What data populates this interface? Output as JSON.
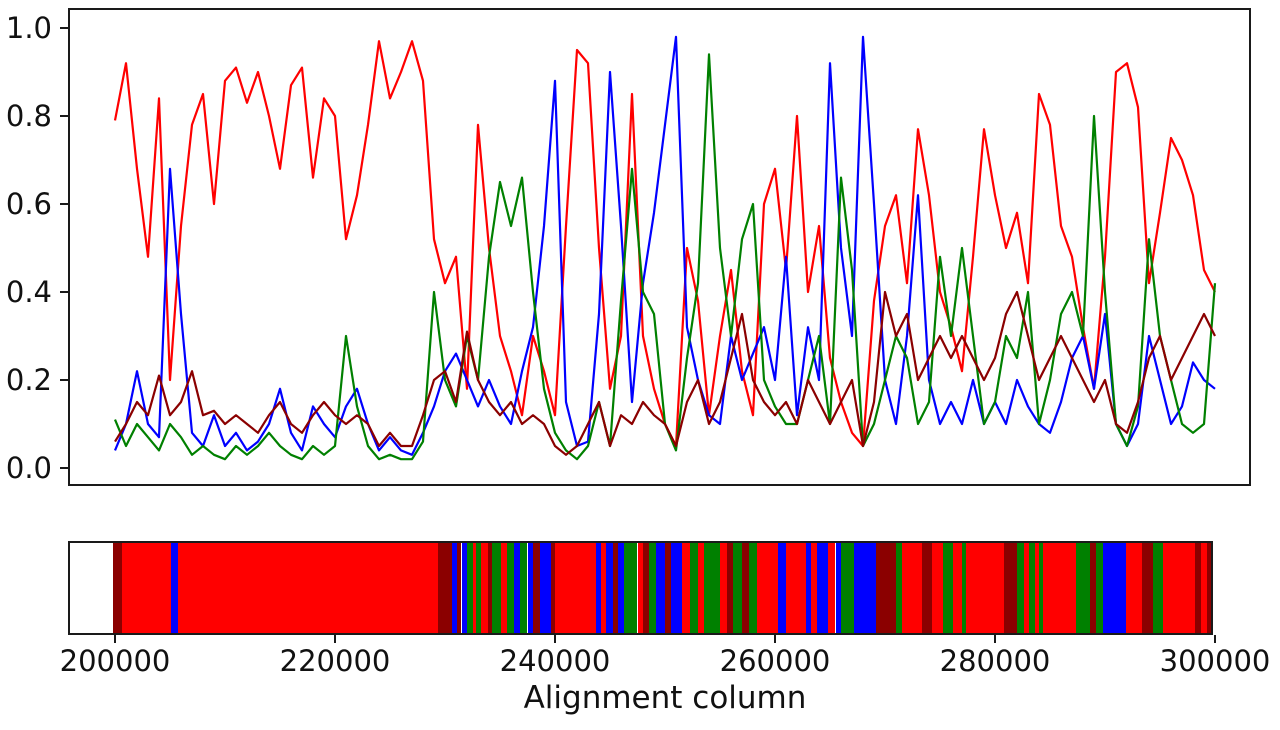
{
  "chart_data": {
    "type": "line",
    "title": "",
    "xlabel": "Alignment column",
    "ylabel": "",
    "xlim": [
      195700,
      304300
    ],
    "ylim": [
      0.0,
      1.0
    ],
    "grid": false,
    "legend": "none",
    "x_start": 200000,
    "x_step": 1000,
    "x_end": 300000,
    "x_tick_values": [
      200000,
      220000,
      240000,
      260000,
      280000,
      300000
    ],
    "x_tick_labels": [
      "200000",
      "220000",
      "240000",
      "260000",
      "280000",
      "300000"
    ],
    "y_tick_values": [
      0.0,
      0.2,
      0.4,
      0.6,
      0.8,
      1.0
    ],
    "y_tick_labels": [
      "0.0",
      "0.2",
      "0.4",
      "0.6",
      "0.8",
      "1.0"
    ],
    "palette": {
      "red": "#ff0000",
      "blue": "#0000ff",
      "green": "#008000",
      "darkred": "#8b0000"
    },
    "series": [
      {
        "name": "red",
        "color": "#ff0000",
        "values": [
          0.79,
          0.92,
          0.68,
          0.48,
          0.84,
          0.2,
          0.55,
          0.78,
          0.85,
          0.6,
          0.88,
          0.91,
          0.83,
          0.9,
          0.8,
          0.68,
          0.87,
          0.91,
          0.66,
          0.84,
          0.8,
          0.52,
          0.62,
          0.78,
          0.97,
          0.84,
          0.9,
          0.97,
          0.88,
          0.52,
          0.42,
          0.48,
          0.18,
          0.78,
          0.5,
          0.3,
          0.22,
          0.12,
          0.3,
          0.22,
          0.12,
          0.55,
          0.95,
          0.92,
          0.5,
          0.18,
          0.3,
          0.85,
          0.3,
          0.18,
          0.1,
          0.05,
          0.5,
          0.38,
          0.12,
          0.3,
          0.45,
          0.22,
          0.12,
          0.6,
          0.68,
          0.45,
          0.8,
          0.4,
          0.55,
          0.25,
          0.15,
          0.08,
          0.05,
          0.38,
          0.55,
          0.62,
          0.42,
          0.77,
          0.62,
          0.4,
          0.32,
          0.22,
          0.48,
          0.77,
          0.62,
          0.5,
          0.58,
          0.42,
          0.85,
          0.78,
          0.55,
          0.48,
          0.32,
          0.18,
          0.48,
          0.9,
          0.92,
          0.82,
          0.42,
          0.58,
          0.75,
          0.7,
          0.62,
          0.45,
          0.4
        ]
      },
      {
        "name": "blue",
        "color": "#0000ff",
        "values": [
          0.04,
          0.1,
          0.22,
          0.1,
          0.07,
          0.68,
          0.35,
          0.08,
          0.05,
          0.12,
          0.05,
          0.08,
          0.04,
          0.06,
          0.1,
          0.18,
          0.08,
          0.04,
          0.14,
          0.1,
          0.07,
          0.14,
          0.18,
          0.1,
          0.04,
          0.07,
          0.04,
          0.03,
          0.08,
          0.14,
          0.22,
          0.26,
          0.2,
          0.14,
          0.2,
          0.14,
          0.1,
          0.22,
          0.32,
          0.55,
          0.88,
          0.15,
          0.05,
          0.06,
          0.35,
          0.9,
          0.55,
          0.15,
          0.42,
          0.58,
          0.78,
          0.98,
          0.32,
          0.2,
          0.12,
          0.1,
          0.3,
          0.2,
          0.26,
          0.32,
          0.2,
          0.48,
          0.12,
          0.32,
          0.2,
          0.92,
          0.5,
          0.3,
          0.98,
          0.6,
          0.2,
          0.1,
          0.3,
          0.62,
          0.2,
          0.1,
          0.15,
          0.1,
          0.2,
          0.1,
          0.15,
          0.1,
          0.2,
          0.14,
          0.1,
          0.08,
          0.15,
          0.25,
          0.3,
          0.18,
          0.35,
          0.1,
          0.05,
          0.1,
          0.3,
          0.2,
          0.1,
          0.14,
          0.24,
          0.2,
          0.18
        ]
      },
      {
        "name": "green",
        "color": "#008000",
        "values": [
          0.11,
          0.05,
          0.1,
          0.07,
          0.04,
          0.1,
          0.07,
          0.03,
          0.05,
          0.03,
          0.02,
          0.05,
          0.03,
          0.05,
          0.08,
          0.05,
          0.03,
          0.02,
          0.05,
          0.03,
          0.05,
          0.3,
          0.14,
          0.05,
          0.02,
          0.03,
          0.02,
          0.02,
          0.06,
          0.4,
          0.2,
          0.14,
          0.3,
          0.2,
          0.48,
          0.65,
          0.55,
          0.66,
          0.4,
          0.18,
          0.08,
          0.04,
          0.02,
          0.05,
          0.15,
          0.05,
          0.38,
          0.68,
          0.4,
          0.35,
          0.1,
          0.04,
          0.25,
          0.42,
          0.94,
          0.5,
          0.3,
          0.52,
          0.6,
          0.2,
          0.14,
          0.1,
          0.1,
          0.2,
          0.3,
          0.1,
          0.66,
          0.45,
          0.05,
          0.1,
          0.2,
          0.3,
          0.25,
          0.1,
          0.15,
          0.48,
          0.3,
          0.5,
          0.3,
          0.1,
          0.15,
          0.3,
          0.25,
          0.4,
          0.1,
          0.2,
          0.35,
          0.4,
          0.3,
          0.8,
          0.4,
          0.1,
          0.05,
          0.14,
          0.52,
          0.3,
          0.2,
          0.1,
          0.08,
          0.1,
          0.42
        ]
      },
      {
        "name": "darkred",
        "color": "#8b0000",
        "values": [
          0.06,
          0.1,
          0.15,
          0.12,
          0.21,
          0.12,
          0.15,
          0.22,
          0.12,
          0.13,
          0.1,
          0.12,
          0.1,
          0.08,
          0.12,
          0.15,
          0.1,
          0.08,
          0.12,
          0.15,
          0.12,
          0.1,
          0.12,
          0.1,
          0.05,
          0.08,
          0.05,
          0.05,
          0.12,
          0.2,
          0.22,
          0.15,
          0.31,
          0.2,
          0.15,
          0.12,
          0.15,
          0.1,
          0.12,
          0.1,
          0.05,
          0.03,
          0.05,
          0.1,
          0.15,
          0.05,
          0.12,
          0.1,
          0.15,
          0.12,
          0.1,
          0.05,
          0.15,
          0.2,
          0.1,
          0.15,
          0.25,
          0.35,
          0.2,
          0.15,
          0.12,
          0.15,
          0.1,
          0.2,
          0.15,
          0.1,
          0.15,
          0.2,
          0.05,
          0.15,
          0.4,
          0.3,
          0.35,
          0.2,
          0.25,
          0.3,
          0.25,
          0.3,
          0.25,
          0.2,
          0.25,
          0.35,
          0.4,
          0.3,
          0.2,
          0.25,
          0.3,
          0.25,
          0.2,
          0.15,
          0.2,
          0.1,
          0.08,
          0.15,
          0.25,
          0.3,
          0.2,
          0.25,
          0.3,
          0.35,
          0.3
        ]
      }
    ],
    "classification_bar": {
      "description": "colored segments along alignment columns showing dominant series",
      "segments": [
        [
          199800,
          200600,
          "darkred"
        ],
        [
          200600,
          205100,
          "red"
        ],
        [
          205100,
          205700,
          "blue"
        ],
        [
          205700,
          229400,
          "red"
        ],
        [
          229400,
          230600,
          "darkred"
        ],
        [
          230600,
          231100,
          "blue"
        ],
        [
          231100,
          231500,
          "darkred"
        ],
        [
          231500,
          232000,
          "blue"
        ],
        [
          232000,
          232500,
          "green"
        ],
        [
          232500,
          232800,
          "red"
        ],
        [
          232800,
          233300,
          "green"
        ],
        [
          233300,
          233900,
          "red"
        ],
        [
          233900,
          234300,
          "darkred"
        ],
        [
          234300,
          235100,
          "green"
        ],
        [
          235100,
          235600,
          "red"
        ],
        [
          235600,
          236300,
          "green"
        ],
        [
          236300,
          236800,
          "blue"
        ],
        [
          236800,
          237500,
          "green"
        ],
        [
          237500,
          238000,
          "blue"
        ],
        [
          238000,
          238600,
          "darkred"
        ],
        [
          238600,
          239600,
          "blue"
        ],
        [
          239600,
          240000,
          "darkred"
        ],
        [
          240000,
          243700,
          "red"
        ],
        [
          243700,
          244200,
          "blue"
        ],
        [
          244200,
          244600,
          "red"
        ],
        [
          244600,
          245300,
          "blue"
        ],
        [
          245300,
          245700,
          "darkred"
        ],
        [
          245700,
          246300,
          "blue"
        ],
        [
          246300,
          247500,
          "green"
        ],
        [
          247500,
          248000,
          "red"
        ],
        [
          248000,
          248500,
          "darkred"
        ],
        [
          248500,
          249200,
          "green"
        ],
        [
          249200,
          250000,
          "blue"
        ],
        [
          250000,
          250500,
          "darkred"
        ],
        [
          250500,
          251500,
          "blue"
        ],
        [
          251500,
          252300,
          "red"
        ],
        [
          252300,
          253000,
          "green"
        ],
        [
          253000,
          253500,
          "red"
        ],
        [
          253500,
          255000,
          "green"
        ],
        [
          255000,
          255600,
          "red"
        ],
        [
          255600,
          256200,
          "darkred"
        ],
        [
          256200,
          257000,
          "green"
        ],
        [
          257000,
          257600,
          "darkred"
        ],
        [
          257600,
          258400,
          "green"
        ],
        [
          258400,
          260300,
          "red"
        ],
        [
          260300,
          261000,
          "blue"
        ],
        [
          261000,
          262800,
          "red"
        ],
        [
          262800,
          263300,
          "blue"
        ],
        [
          263300,
          263800,
          "red"
        ],
        [
          263800,
          264800,
          "blue"
        ],
        [
          264800,
          265500,
          "red"
        ],
        [
          265500,
          266000,
          "blue"
        ],
        [
          266000,
          267200,
          "green"
        ],
        [
          267200,
          269200,
          "blue"
        ],
        [
          269200,
          271000,
          "darkred"
        ],
        [
          271000,
          271500,
          "green"
        ],
        [
          271500,
          273400,
          "red"
        ],
        [
          273400,
          274300,
          "darkred"
        ],
        [
          274300,
          275300,
          "red"
        ],
        [
          275300,
          276200,
          "green"
        ],
        [
          276200,
          277000,
          "red"
        ],
        [
          277000,
          277400,
          "green"
        ],
        [
          277400,
          280800,
          "red"
        ],
        [
          280800,
          282000,
          "darkred"
        ],
        [
          282000,
          282600,
          "green"
        ],
        [
          282600,
          283100,
          "red"
        ],
        [
          283100,
          283600,
          "green"
        ],
        [
          283600,
          284000,
          "red"
        ],
        [
          284000,
          284400,
          "green"
        ],
        [
          284400,
          287400,
          "red"
        ],
        [
          287400,
          288600,
          "green"
        ],
        [
          288600,
          289200,
          "darkred"
        ],
        [
          289200,
          289800,
          "green"
        ],
        [
          289800,
          291900,
          "blue"
        ],
        [
          291900,
          293400,
          "red"
        ],
        [
          293400,
          294400,
          "darkred"
        ],
        [
          294400,
          295300,
          "green"
        ],
        [
          295300,
          298200,
          "red"
        ],
        [
          298200,
          298700,
          "darkred"
        ],
        [
          298700,
          299300,
          "red"
        ],
        [
          299300,
          299600,
          "darkred"
        ],
        [
          299600,
          300100,
          "red"
        ],
        [
          300100,
          300300,
          "darkred"
        ]
      ]
    }
  }
}
